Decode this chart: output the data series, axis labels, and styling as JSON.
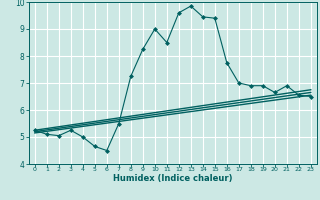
{
  "xlabel": "Humidex (Indice chaleur)",
  "bg_color": "#cce8e4",
  "line_color": "#006060",
  "xlim": [
    -0.5,
    23.5
  ],
  "ylim": [
    4,
    10
  ],
  "xticks": [
    0,
    1,
    2,
    3,
    4,
    5,
    6,
    7,
    8,
    9,
    10,
    11,
    12,
    13,
    14,
    15,
    16,
    17,
    18,
    19,
    20,
    21,
    22,
    23
  ],
  "yticks": [
    4,
    5,
    6,
    7,
    8,
    9,
    10
  ],
  "series1_x": [
    0,
    1,
    2,
    3,
    4,
    5,
    6,
    7,
    8,
    9,
    10,
    11,
    12,
    13,
    14,
    15,
    16,
    17,
    18,
    19,
    20,
    21,
    22,
    23
  ],
  "series1_y": [
    5.25,
    5.1,
    5.05,
    5.25,
    5.0,
    4.65,
    4.5,
    5.5,
    7.25,
    8.25,
    9.0,
    8.5,
    9.6,
    9.85,
    9.45,
    9.4,
    7.75,
    7.0,
    6.9,
    6.9,
    6.65,
    6.9,
    6.55,
    6.5
  ],
  "series2_x": [
    0,
    23
  ],
  "series2_y": [
    5.25,
    6.75
  ],
  "series3_x": [
    0,
    23
  ],
  "series3_y": [
    5.2,
    6.65
  ],
  "series4_x": [
    0,
    23
  ],
  "series4_y": [
    5.15,
    6.55
  ]
}
